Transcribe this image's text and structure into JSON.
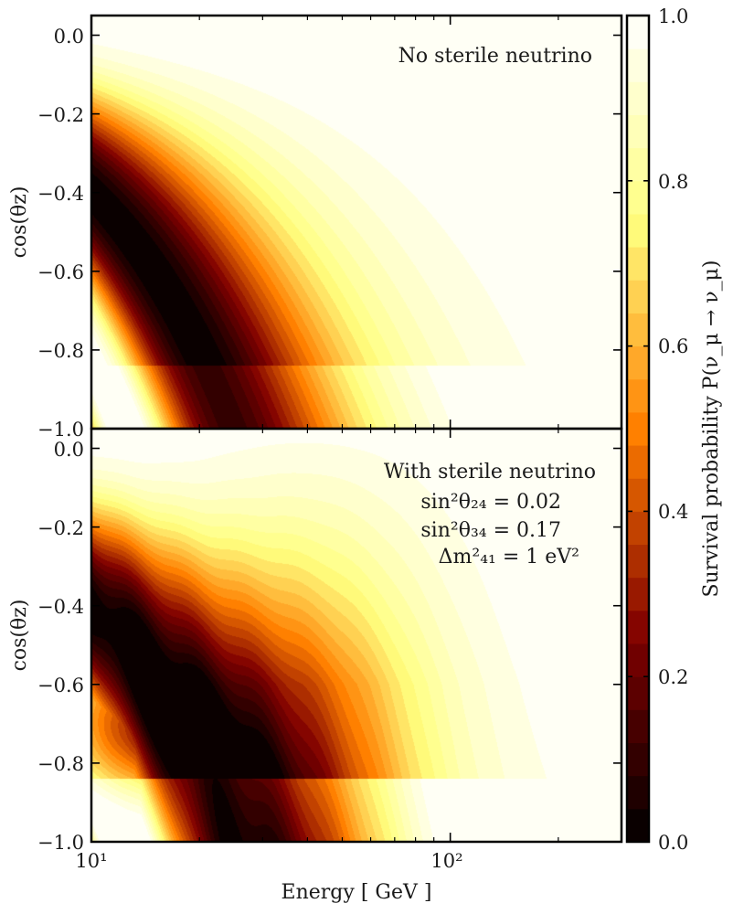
{
  "chart_data": {
    "type": "heatmap",
    "colormap": "afmhot",
    "xlabel": "Energy [ GeV ]",
    "xscale": "log",
    "xlim": [
      10,
      300
    ],
    "xticks": [
      {
        "value": 10,
        "label": "10¹"
      },
      {
        "value": 100,
        "label": "10²"
      }
    ],
    "colorbar": {
      "label": "Survival probability P(ν_μ → ν_μ)",
      "range": [
        0.0,
        1.0
      ],
      "levels": 25,
      "ticks": [
        "0.0",
        "0.2",
        "0.4",
        "0.6",
        "0.8",
        "1.0"
      ]
    },
    "panels": [
      {
        "annotation": [
          "No sterile neutrino"
        ],
        "ylabel": "cos(θz)",
        "ylim": [
          -1.0,
          0.05
        ],
        "yticks": [
          "−1.0",
          "−0.8",
          "−0.6",
          "−0.4",
          "−0.2",
          "0.0"
        ],
        "model": "standard",
        "dark_minimum": {
          "energy_gev": 15,
          "cos_theta_z": -0.9,
          "probability": 0.0
        }
      },
      {
        "annotation": [
          "With sterile neutrino",
          "sin²θ₂₄ = 0.02",
          "sin²θ₃₄ = 0.17",
          "Δm²₄₁ = 1 eV²"
        ],
        "ylabel": "cos(θz)",
        "ylim": [
          -1.0,
          0.05
        ],
        "yticks": [
          "−1.0",
          "−0.8",
          "−0.6",
          "−0.4",
          "−0.2",
          "0.0"
        ],
        "model": "sterile",
        "sterile_params": {
          "sin2_theta24": 0.02,
          "sin2_theta34": 0.17,
          "dm2_41_eV2": 1
        },
        "dark_minimum": {
          "energy_gev": 17,
          "cos_theta_z": -0.7,
          "probability": 0.05
        }
      }
    ]
  }
}
